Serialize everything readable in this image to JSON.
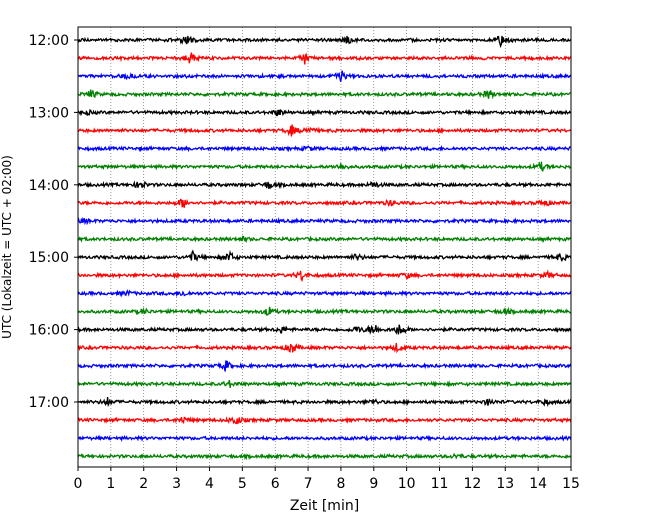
{
  "chart_data": {
    "type": "line",
    "title": "",
    "xlabel": "Zeit  [min]",
    "ylabel": "UTC (Lokalzeit = UTC + 02:00)",
    "xlim": [
      0,
      15
    ],
    "x_ticks": [
      "0",
      "1",
      "2",
      "3",
      "4",
      "5",
      "6",
      "7",
      "8",
      "9",
      "10",
      "11",
      "12",
      "13",
      "14",
      "15"
    ],
    "y_ticks": [
      "12:00",
      "13:00",
      "14:00",
      "15:00",
      "16:00",
      "17:00"
    ],
    "row_interval_minutes": 15,
    "row_start": "12:00",
    "row_count": 24,
    "trace_colors": [
      "#000000",
      "#ff0000",
      "#0000ff",
      "#008000"
    ],
    "grid": "vertical-dotted",
    "rows": [
      {
        "time": "12:00",
        "color": "#000000",
        "bursts": [
          [
            3.3,
            0.7
          ],
          [
            8.2,
            0.6
          ],
          [
            12.9,
            1.0
          ]
        ]
      },
      {
        "time": "12:15",
        "color": "#ff0000",
        "bursts": [
          [
            3.4,
            1.0
          ],
          [
            6.9,
            0.9
          ]
        ]
      },
      {
        "time": "12:30",
        "color": "#0000ff",
        "bursts": [
          [
            8.0,
            0.9
          ],
          [
            1.5,
            0.4
          ]
        ]
      },
      {
        "time": "12:45",
        "color": "#008000",
        "bursts": [
          [
            0.4,
            0.6
          ],
          [
            12.5,
            0.7
          ]
        ]
      },
      {
        "time": "13:00",
        "color": "#000000",
        "bursts": [
          [
            6.1,
            0.5
          ],
          [
            0.3,
            0.3
          ]
        ]
      },
      {
        "time": "13:15",
        "color": "#ff0000",
        "bursts": [
          [
            6.5,
            0.8
          ],
          [
            7.0,
            0.6
          ]
        ]
      },
      {
        "time": "13:30",
        "color": "#0000ff",
        "bursts": [
          [
            7.0,
            0.3
          ]
        ]
      },
      {
        "time": "13:45",
        "color": "#008000",
        "bursts": [
          [
            8.0,
            0.5
          ],
          [
            14.1,
            0.6
          ]
        ]
      },
      {
        "time": "14:00",
        "color": "#000000",
        "bursts": [
          [
            1.9,
            0.7
          ],
          [
            5.8,
            0.6
          ],
          [
            9.0,
            0.5
          ]
        ]
      },
      {
        "time": "14:15",
        "color": "#ff0000",
        "bursts": [
          [
            3.2,
            0.8
          ],
          [
            14.2,
            0.5
          ],
          [
            9.5,
            0.4
          ]
        ]
      },
      {
        "time": "14:30",
        "color": "#0000ff",
        "bursts": [
          [
            0.2,
            0.3
          ]
        ]
      },
      {
        "time": "14:45",
        "color": "#008000",
        "bursts": [
          [
            5.0,
            0.3
          ]
        ]
      },
      {
        "time": "15:00",
        "color": "#000000",
        "bursts": [
          [
            3.5,
            0.8
          ],
          [
            4.6,
            0.9
          ],
          [
            14.7,
            0.6
          ],
          [
            8.5,
            0.5
          ]
        ]
      },
      {
        "time": "15:15",
        "color": "#ff0000",
        "bursts": [
          [
            6.8,
            0.8
          ],
          [
            14.3,
            0.4
          ],
          [
            10.0,
            0.4
          ]
        ]
      },
      {
        "time": "15:30",
        "color": "#0000ff",
        "bursts": [
          [
            3.2,
            0.4
          ],
          [
            1.5,
            0.3
          ]
        ]
      },
      {
        "time": "15:45",
        "color": "#008000",
        "bursts": [
          [
            5.8,
            0.7
          ],
          [
            2.0,
            0.4
          ],
          [
            13.0,
            0.4
          ]
        ]
      },
      {
        "time": "16:00",
        "color": "#000000",
        "bursts": [
          [
            9.0,
            1.0
          ],
          [
            9.8,
            1.0
          ],
          [
            6.2,
            0.5
          ],
          [
            8.5,
            0.5
          ]
        ]
      },
      {
        "time": "16:15",
        "color": "#ff0000",
        "bursts": [
          [
            6.5,
            0.9
          ],
          [
            9.7,
            0.6
          ]
        ]
      },
      {
        "time": "16:30",
        "color": "#0000ff",
        "bursts": [
          [
            4.5,
            0.8
          ]
        ]
      },
      {
        "time": "16:45",
        "color": "#008000",
        "bursts": [
          [
            4.6,
            0.5
          ]
        ]
      },
      {
        "time": "17:00",
        "color": "#000000",
        "bursts": [
          [
            0.9,
            0.6
          ],
          [
            12.5,
            0.5
          ],
          [
            14.2,
            0.4
          ],
          [
            9.0,
            0.4
          ]
        ]
      },
      {
        "time": "17:15",
        "color": "#ff0000",
        "bursts": [
          [
            4.8,
            0.8
          ],
          [
            3.2,
            0.5
          ]
        ]
      },
      {
        "time": "17:30",
        "color": "#0000ff",
        "bursts": []
      },
      {
        "time": "17:45",
        "color": "#008000",
        "bursts": [
          [
            11.5,
            0.3
          ]
        ]
      }
    ]
  }
}
